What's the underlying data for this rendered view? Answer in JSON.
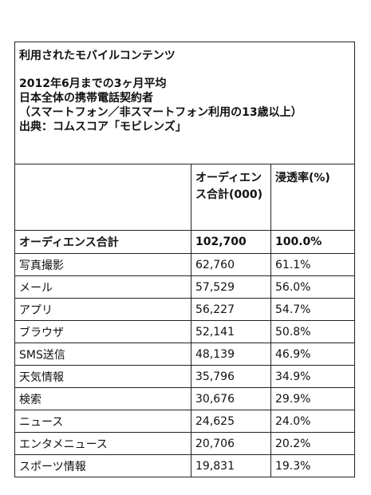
{
  "title_block": {
    "line1": "利用されたモバイルコンテンツ",
    "line2": "2012年6月までの3ヶ月平均",
    "line3": "日本全体の携帯電話契約者",
    "line4": "（スマートフォン／非スマートフォン利用の13歳以上）",
    "line5": "出典：コムスコア「モビレンズ」"
  },
  "header": {
    "col1": "",
    "col2": "オーディエンス合計(000)",
    "col3": "浸透率(%)"
  },
  "total": {
    "label": "オーディエンス合計",
    "audience": "102,700",
    "penetration": "100.0%"
  },
  "rows": [
    {
      "label": "写真撮影",
      "audience": "62,760",
      "penetration": "61.1%"
    },
    {
      "label": "メール",
      "audience": "57,529",
      "penetration": "56.0%"
    },
    {
      "label": "アプリ",
      "audience": "56,227",
      "penetration": "54.7%"
    },
    {
      "label": "ブラウザ",
      "audience": "52,141",
      "penetration": "50.8%"
    },
    {
      "label": "SMS送信",
      "audience": "48,139",
      "penetration": "46.9%"
    },
    {
      "label": "天気情報",
      "audience": "35,796",
      "penetration": "34.9%"
    },
    {
      "label": "検索",
      "audience": "30,676",
      "penetration": "29.9%"
    },
    {
      "label": "ニュース",
      "audience": "24,625",
      "penetration": "24.0%"
    },
    {
      "label": "エンタメニュース",
      "audience": "20,706",
      "penetration": "20.2%"
    },
    {
      "label": "スポーツ情報",
      "audience": "19,831",
      "penetration": "19.3%"
    }
  ]
}
